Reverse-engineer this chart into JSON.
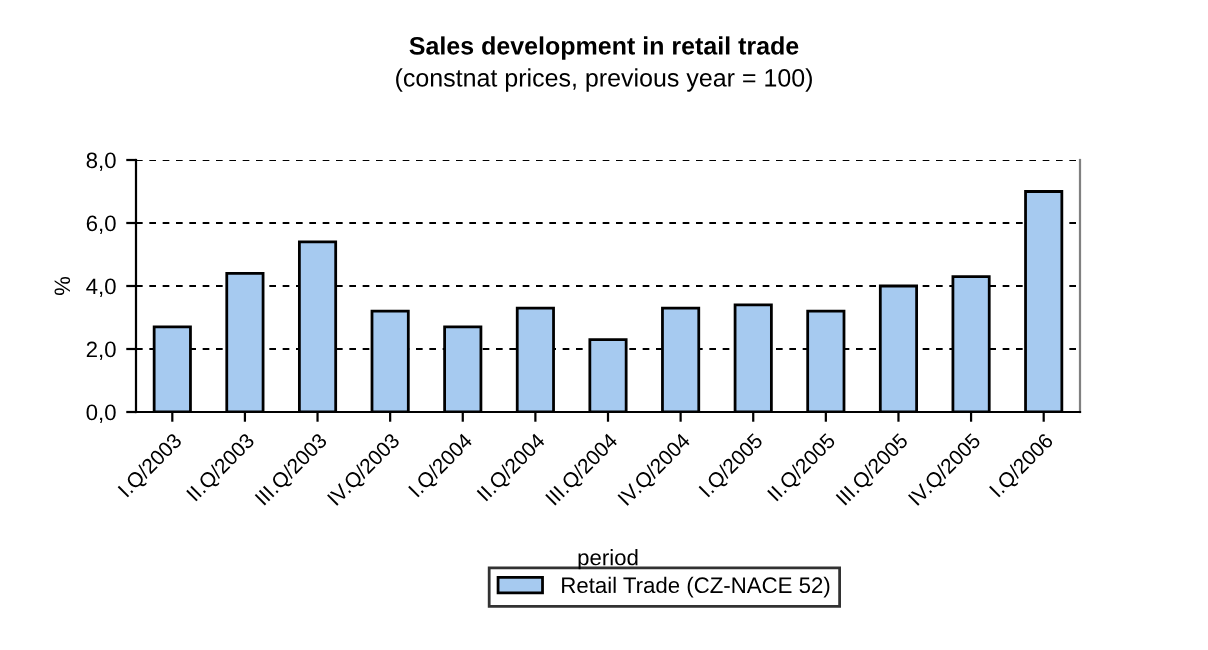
{
  "chart_data": {
    "type": "bar",
    "title": "Sales development in retail trade",
    "subtitle": "(constnat prices, previous year = 100)",
    "xlabel": "period",
    "ylabel": "%",
    "categories": [
      "I.Q/2003",
      "II.Q/2003",
      "III.Q/2003",
      "IV.Q/2003",
      "I.Q/2004",
      "II.Q/2004",
      "III.Q/2004",
      "IV.Q/2004",
      "I.Q/2005",
      "II.Q/2005",
      "III.Q/2005",
      "IV.Q/2005",
      "I.Q/2006"
    ],
    "series": [
      {
        "name": "Retail Trade (CZ-NACE 52)",
        "color": "#a6caf0",
        "values": [
          2.7,
          4.4,
          5.4,
          3.2,
          2.7,
          3.3,
          2.3,
          3.3,
          3.4,
          3.2,
          4.0,
          4.3,
          7.0
        ]
      }
    ],
    "ylim": [
      0,
      8
    ],
    "yticks": [
      {
        "value": 0,
        "label": "0,0"
      },
      {
        "value": 2,
        "label": "2,0"
      },
      {
        "value": 4,
        "label": "4,0"
      },
      {
        "value": 6,
        "label": "6,0"
      },
      {
        "value": 8,
        "label": "8,0"
      }
    ],
    "grid": "y",
    "legend": "bottom"
  }
}
